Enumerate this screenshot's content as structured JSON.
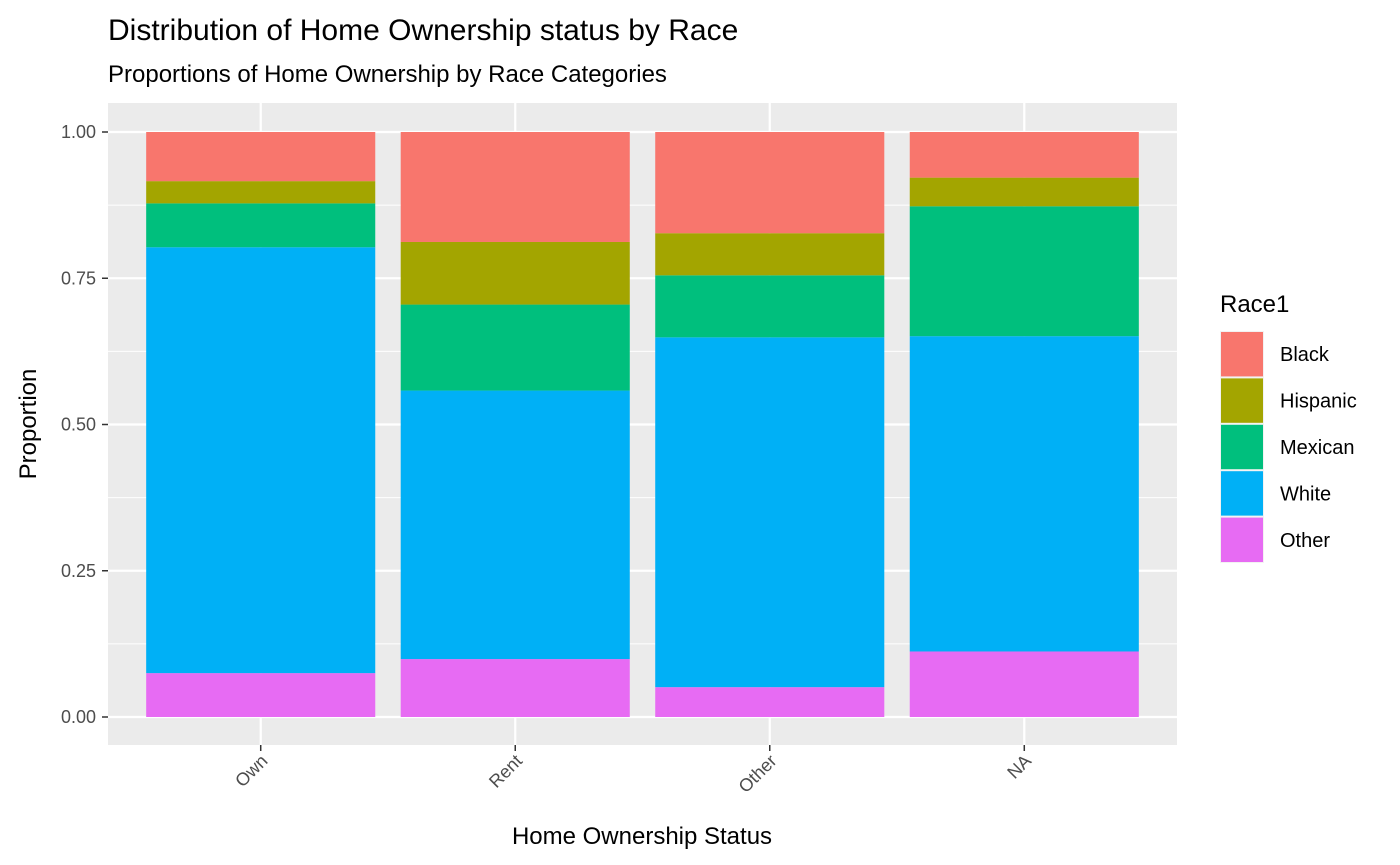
{
  "chart_data": {
    "type": "bar",
    "stacked": true,
    "title": "Distribution of Home Ownership status by Race",
    "subtitle": "Proportions of Home Ownership by Race Categories",
    "xlabel": "Home Ownership Status",
    "ylabel": "Proportion",
    "ylim": [
      0,
      1
    ],
    "y_ticks": [
      "0.00",
      "0.25",
      "0.50",
      "0.75",
      "1.00"
    ],
    "categories": [
      "Own",
      "Rent",
      "Other",
      "NA"
    ],
    "legend_title": "Race1",
    "legend_position": "right",
    "grid": true,
    "series": [
      {
        "name": "Black",
        "color": "#F8766D",
        "values": [
          0.084,
          0.188,
          0.173,
          0.078
        ]
      },
      {
        "name": "Hispanic",
        "color": "#A3A500",
        "values": [
          0.038,
          0.107,
          0.072,
          0.049
        ]
      },
      {
        "name": "Mexican",
        "color": "#00BF7D",
        "values": [
          0.075,
          0.147,
          0.106,
          0.222
        ]
      },
      {
        "name": "White",
        "color": "#00B0F6",
        "values": [
          0.728,
          0.459,
          0.598,
          0.539
        ]
      },
      {
        "name": "Other",
        "color": "#E76BF3",
        "values": [
          0.075,
          0.099,
          0.051,
          0.112
        ]
      }
    ]
  }
}
